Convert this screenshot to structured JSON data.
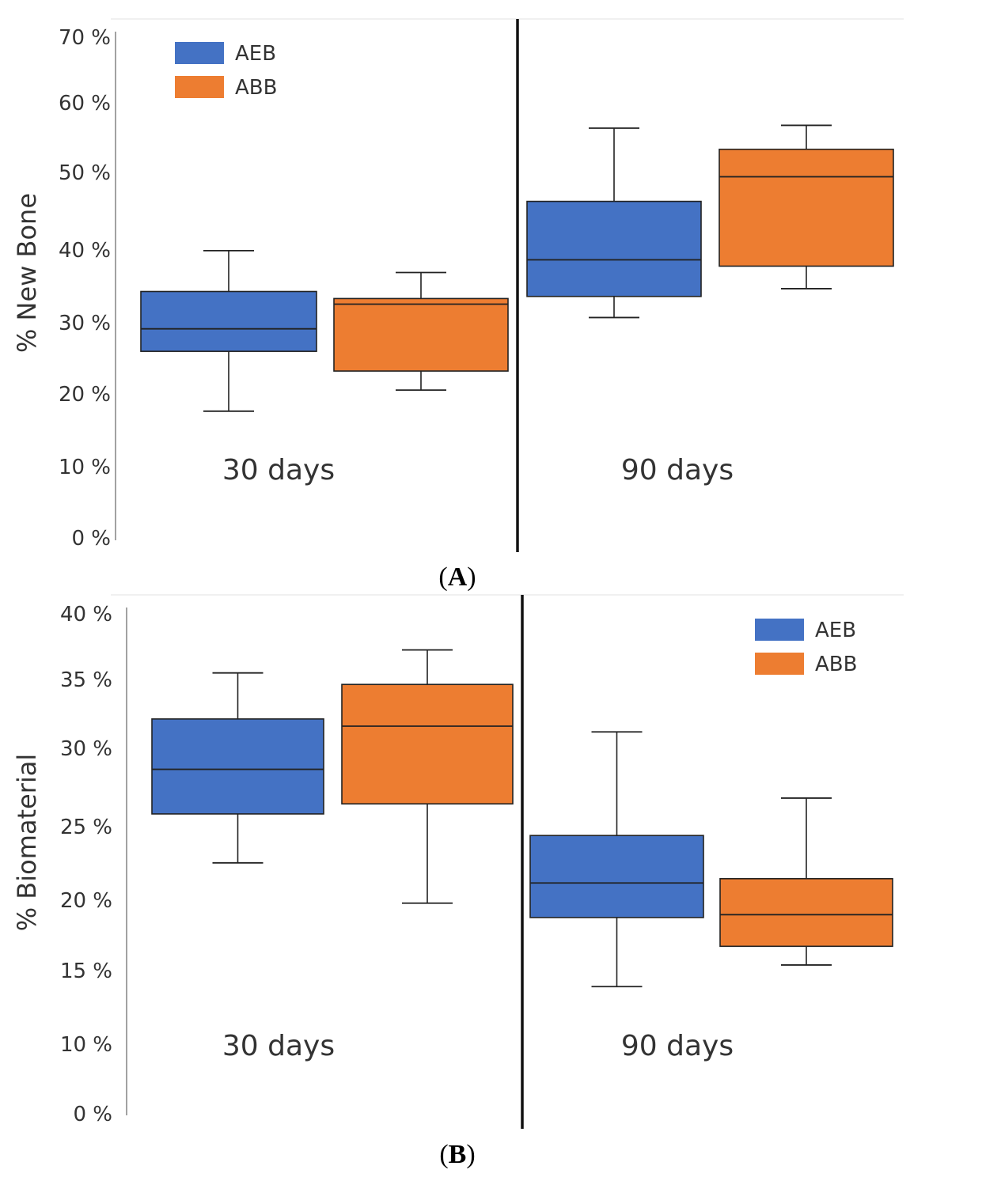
{
  "chart_data": [
    {
      "type": "boxplot",
      "panel_label": "A",
      "ylabel": "% New Bone",
      "yticks": [
        "0 %",
        "10 %",
        "20 %",
        "30 %",
        "40 %",
        "50 %",
        "60 %",
        "70 %"
      ],
      "ylim": [
        0,
        70
      ],
      "groups": [
        "30 days",
        "90 days"
      ],
      "legend": {
        "position": "top-left",
        "entries": [
          "AEB",
          "ABB"
        ]
      },
      "series": [
        {
          "name": "AEB",
          "color": "#4472C4",
          "boxes": [
            {
              "group": "30 days",
              "min": 18,
              "q1": 26.5,
              "median": 29.7,
              "q3": 35.0,
              "max": 40.8
            },
            {
              "group": "90 days",
              "min": 31.3,
              "q1": 34.3,
              "median": 39.5,
              "q3": 47.8,
              "max": 58.2
            }
          ]
        },
        {
          "name": "ABB",
          "color": "#ED7D31",
          "boxes": [
            {
              "group": "30 days",
              "min": 21.0,
              "q1": 23.7,
              "median": 33.2,
              "q3": 34.0,
              "max": 37.7
            },
            {
              "group": "90 days",
              "min": 35.4,
              "q1": 38.6,
              "median": 51.3,
              "q3": 55.2,
              "max": 58.6
            }
          ]
        }
      ]
    },
    {
      "type": "boxplot",
      "panel_label": "B",
      "ylabel": "% Biomaterial",
      "yticks": [
        "0 %",
        "10 %",
        "15 %",
        "20 %",
        "25 %",
        "30 %",
        "35 %",
        "40 %"
      ],
      "ylim": [
        0,
        40
      ],
      "groups": [
        "30 days",
        "90 days"
      ],
      "legend": {
        "position": "top-right",
        "entries": [
          "AEB",
          "ABB"
        ]
      },
      "series": [
        {
          "name": "AEB",
          "color": "#4472C4",
          "boxes": [
            {
              "group": "30 days",
              "min": 22.6,
              "q1": 26.0,
              "median": 29.1,
              "q3": 32.6,
              "max": 35.8
            },
            {
              "group": "90 days",
              "min": 14.0,
              "q1": 18.8,
              "median": 21.2,
              "q3": 24.5,
              "max": 31.7
            }
          ]
        },
        {
          "name": "ABB",
          "color": "#ED7D31",
          "boxes": [
            {
              "group": "30 days",
              "min": 19.8,
              "q1": 26.7,
              "median": 32.1,
              "q3": 35.0,
              "max": 37.4
            },
            {
              "group": "90 days",
              "min": 15.5,
              "q1": 16.8,
              "median": 19.0,
              "q3": 21.5,
              "max": 27.1
            }
          ]
        }
      ]
    }
  ]
}
